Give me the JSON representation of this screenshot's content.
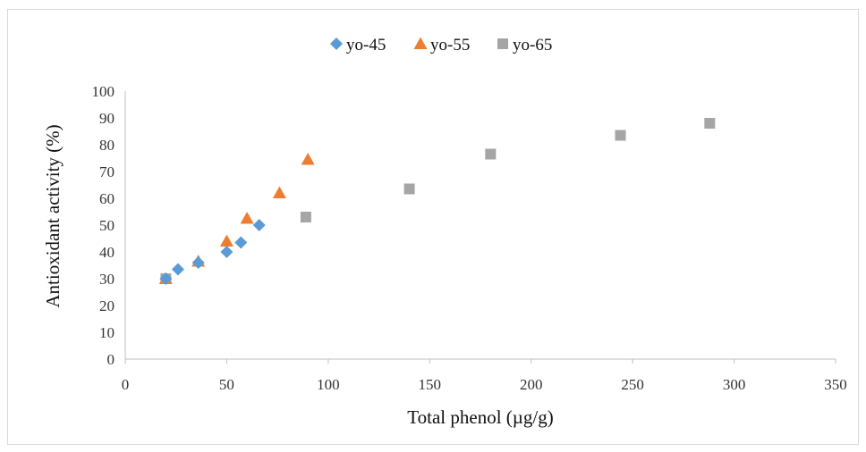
{
  "chart_data": {
    "type": "scatter",
    "title": "",
    "xlabel": "Total phenol (µg/g)",
    "ylabel": "Antioxidant activity (%)",
    "xlim": [
      0,
      350
    ],
    "ylim": [
      0,
      100
    ],
    "x_ticks": [
      "0",
      "50",
      "100",
      "150",
      "200",
      "250",
      "300",
      "350"
    ],
    "y_ticks": [
      "0",
      "10",
      "20",
      "30",
      "40",
      "50",
      "60",
      "70",
      "80",
      "90",
      "100"
    ],
    "grid": false,
    "legend_position": "top-center",
    "series": [
      {
        "name": "yo-45",
        "marker": "diamond",
        "color": "#5b9bd5",
        "points": [
          [
            20,
            30
          ],
          [
            26,
            33.5
          ],
          [
            36,
            36
          ],
          [
            50,
            40
          ],
          [
            57,
            43.5
          ],
          [
            66,
            50
          ]
        ]
      },
      {
        "name": "yo-55",
        "marker": "triangle",
        "color": "#ed7d31",
        "points": [
          [
            20,
            30
          ],
          [
            36,
            36.5
          ],
          [
            50,
            44
          ],
          [
            60,
            52.5
          ],
          [
            76,
            62
          ],
          [
            90,
            74.5
          ]
        ]
      },
      {
        "name": "yo-65",
        "marker": "square",
        "color": "#a5a5a5",
        "points": [
          [
            20,
            30
          ],
          [
            89,
            53
          ],
          [
            140,
            63.5
          ],
          [
            180,
            76.5
          ],
          [
            244,
            83.5
          ],
          [
            288,
            88
          ]
        ]
      }
    ]
  }
}
